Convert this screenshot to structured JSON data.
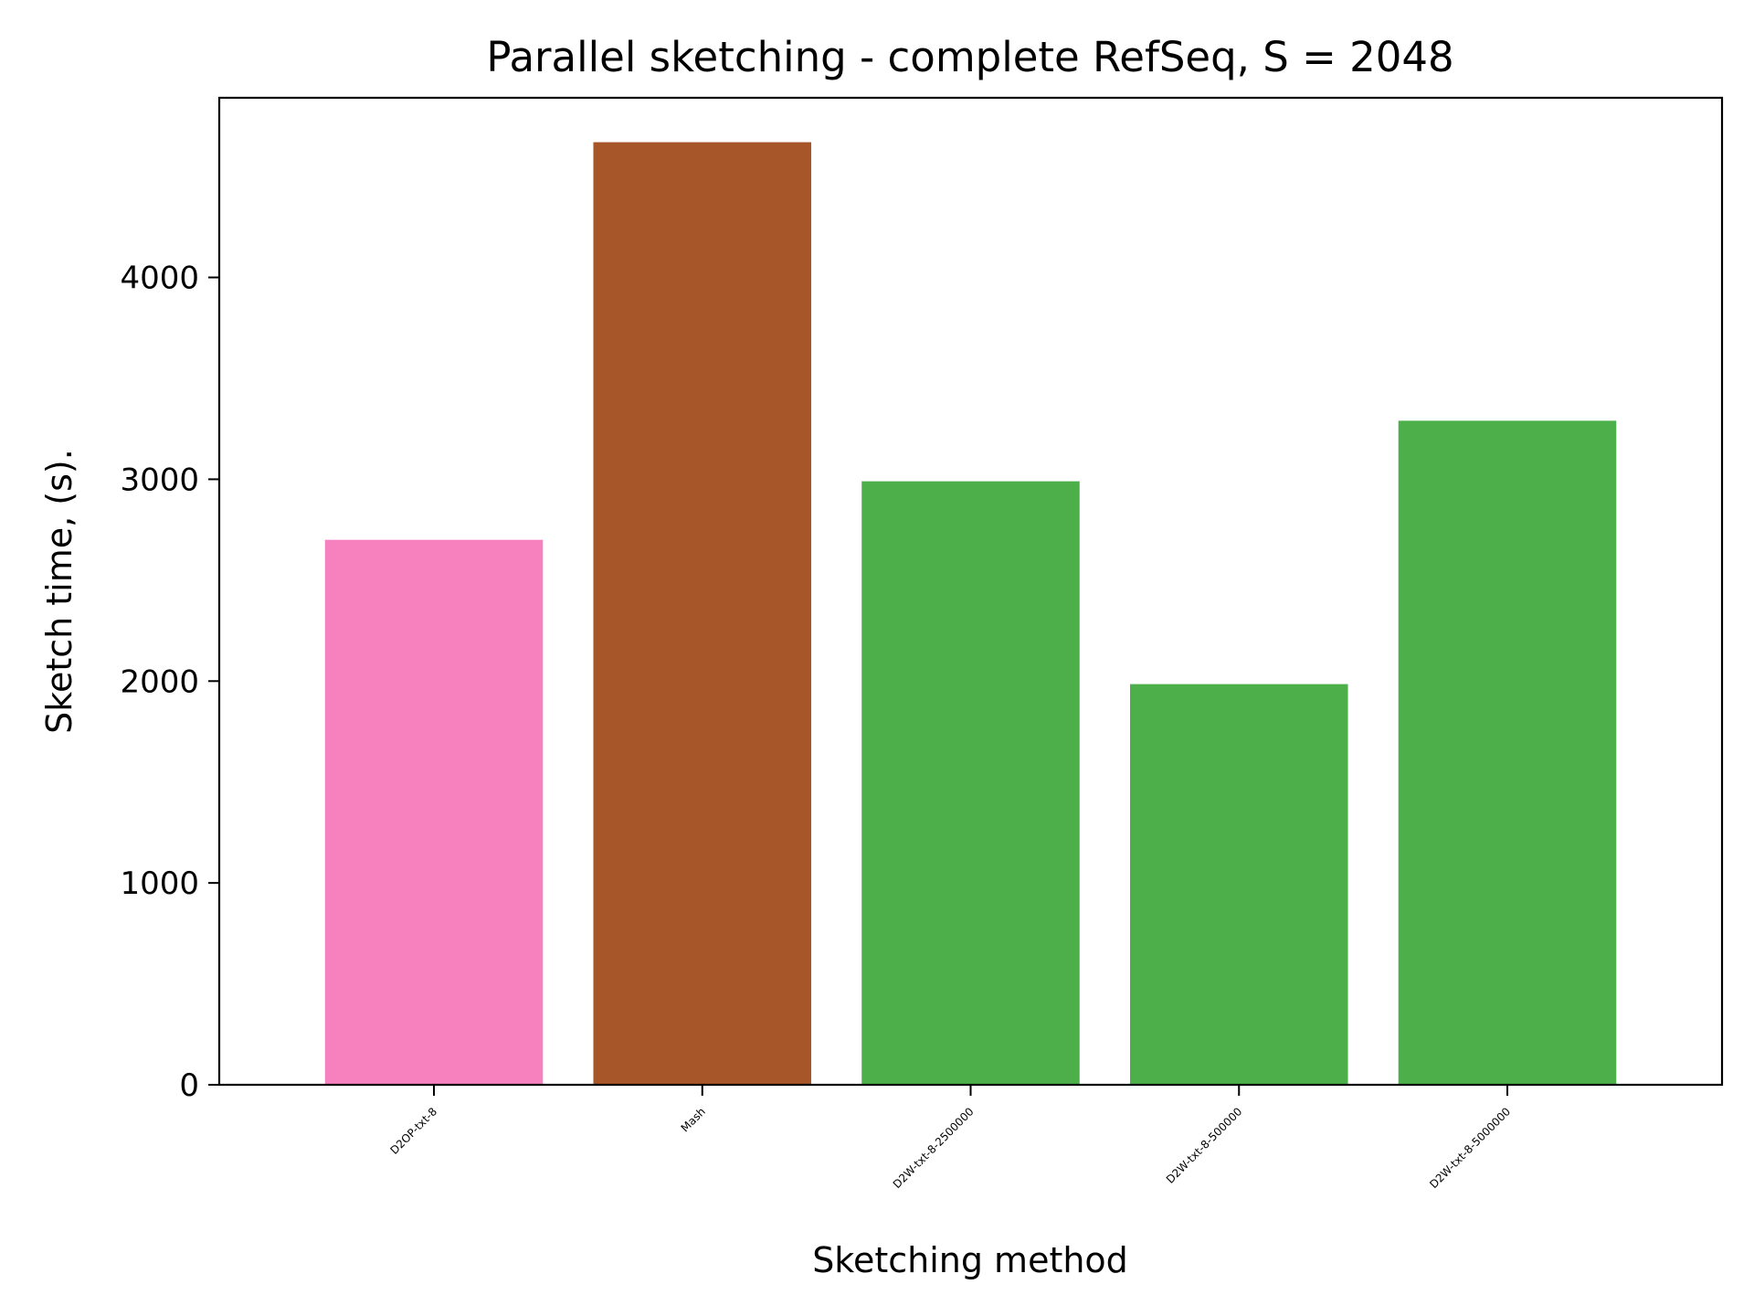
{
  "chart_data": {
    "type": "bar",
    "title": "Parallel sketching - complete RefSeq, S = 2048",
    "xlabel": "Sketching method",
    "ylabel": "Sketch time, (s).",
    "categories": [
      "D2OP-txt-8",
      "Mash",
      "D2W-txt-8-2500000",
      "D2W-txt-8-500000",
      "D2W-txt-8-5000000"
    ],
    "values": [
      2700,
      4670,
      2990,
      1985,
      3290
    ],
    "colors": [
      "#f781bf",
      "#a65628",
      "#4daf4a",
      "#4daf4a",
      "#4daf4a"
    ],
    "yticks": [
      0,
      1000,
      2000,
      3000,
      4000
    ],
    "ylim": [
      0,
      4890
    ],
    "grid": false,
    "legend": "none"
  }
}
